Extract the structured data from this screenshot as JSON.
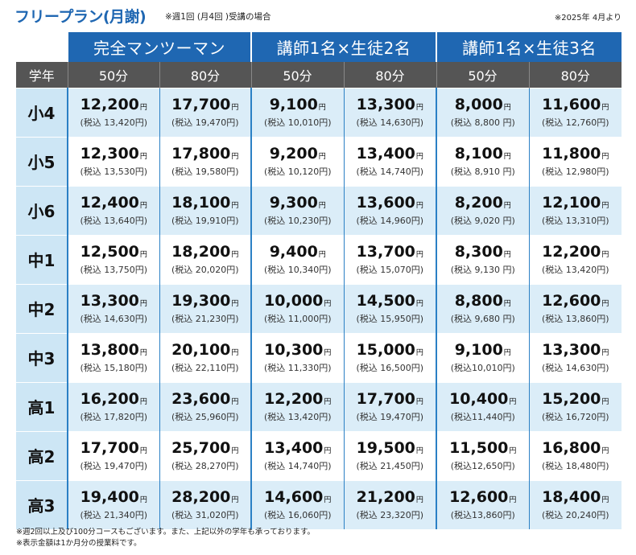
{
  "header": {
    "title": "フリープラン(月謝)",
    "note": "※週1回 (月4回 )受講の場合",
    "as_of": "※2025年 4月より"
  },
  "table": {
    "plans": [
      "完全マンツーマン",
      "講師1名×生徒2名",
      "講師1名×生徒3名"
    ],
    "grade_header": "学年",
    "durations": [
      "50分",
      "80分",
      "50分",
      "80分",
      "50分",
      "80分"
    ],
    "yen": "円",
    "rows": [
      {
        "grade": "小4",
        "prices": [
          {
            "price": "12,200",
            "tax": "(税込 13,420円)"
          },
          {
            "price": "17,700",
            "tax": "(税込 19,470円)"
          },
          {
            "price": "9,100",
            "tax": "(税込 10,010円)"
          },
          {
            "price": "13,300",
            "tax": "(税込 14,630円)"
          },
          {
            "price": "8,000",
            "tax": "(税込 8,800 円)"
          },
          {
            "price": "11,600",
            "tax": "(税込 12,760円)"
          }
        ]
      },
      {
        "grade": "小5",
        "prices": [
          {
            "price": "12,300",
            "tax": "(税込 13,530円)"
          },
          {
            "price": "17,800",
            "tax": "(税込 19,580円)"
          },
          {
            "price": "9,200",
            "tax": "(税込 10,120円)"
          },
          {
            "price": "13,400",
            "tax": "(税込 14,740円)"
          },
          {
            "price": "8,100",
            "tax": "(税込 8,910 円)"
          },
          {
            "price": "11,800",
            "tax": "(税込 12,980円)"
          }
        ]
      },
      {
        "grade": "小6",
        "prices": [
          {
            "price": "12,400",
            "tax": "(税込 13,640円)"
          },
          {
            "price": "18,100",
            "tax": "(税込 19,910円)"
          },
          {
            "price": "9,300",
            "tax": "(税込 10,230円)"
          },
          {
            "price": "13,600",
            "tax": "(税込 14,960円)"
          },
          {
            "price": "8,200",
            "tax": "(税込 9,020 円)"
          },
          {
            "price": "12,100",
            "tax": "(税込 13,310円)"
          }
        ]
      },
      {
        "grade": "中1",
        "prices": [
          {
            "price": "12,500",
            "tax": "(税込 13,750円)"
          },
          {
            "price": "18,200",
            "tax": "(税込 20,020円)"
          },
          {
            "price": "9,400",
            "tax": "(税込 10,340円)"
          },
          {
            "price": "13,700",
            "tax": "(税込 15,070円)"
          },
          {
            "price": "8,300",
            "tax": "(税込 9,130 円)"
          },
          {
            "price": "12,200",
            "tax": "(税込 13,420円)"
          }
        ]
      },
      {
        "grade": "中2",
        "prices": [
          {
            "price": "13,300",
            "tax": "(税込 14,630円)"
          },
          {
            "price": "19,300",
            "tax": "(税込 21,230円)"
          },
          {
            "price": "10,000",
            "tax": "(税込 11,000円)"
          },
          {
            "price": "14,500",
            "tax": "(税込 15,950円)"
          },
          {
            "price": "8,800",
            "tax": "(税込 9,680 円)"
          },
          {
            "price": "12,600",
            "tax": "(税込 13,860円)"
          }
        ]
      },
      {
        "grade": "中3",
        "prices": [
          {
            "price": "13,800",
            "tax": "(税込 15,180円)"
          },
          {
            "price": "20,100",
            "tax": "(税込 22,110円)"
          },
          {
            "price": "10,300",
            "tax": "(税込 11,330円)"
          },
          {
            "price": "15,000",
            "tax": "(税込 16,500円)"
          },
          {
            "price": "9,100",
            "tax": "(税込10,010円)"
          },
          {
            "price": "13,300",
            "tax": "(税込 14,630円)"
          }
        ]
      },
      {
        "grade": "高1",
        "prices": [
          {
            "price": "16,200",
            "tax": "(税込 17,820円)"
          },
          {
            "price": "23,600",
            "tax": "(税込 25,960円)"
          },
          {
            "price": "12,200",
            "tax": "(税込 13,420円)"
          },
          {
            "price": "17,700",
            "tax": "(税込 19,470円)"
          },
          {
            "price": "10,400",
            "tax": "(税込11,440円)"
          },
          {
            "price": "15,200",
            "tax": "(税込 16,720円)"
          }
        ]
      },
      {
        "grade": "高2",
        "prices": [
          {
            "price": "17,700",
            "tax": "(税込 19,470円)"
          },
          {
            "price": "25,700",
            "tax": "(税込 28,270円)"
          },
          {
            "price": "13,400",
            "tax": "(税込 14,740円)"
          },
          {
            "price": "19,500",
            "tax": "(税込 21,450円)"
          },
          {
            "price": "11,500",
            "tax": "(税込12,650円)"
          },
          {
            "price": "16,800",
            "tax": "(税込 18,480円)"
          }
        ]
      },
      {
        "grade": "高3",
        "prices": [
          {
            "price": "19,400",
            "tax": "(税込 21,340円)"
          },
          {
            "price": "28,200",
            "tax": "(税込 31,020円)"
          },
          {
            "price": "14,600",
            "tax": "(税込 16,060円)"
          },
          {
            "price": "21,200",
            "tax": "(税込 23,320円)"
          },
          {
            "price": "12,600",
            "tax": "(税込13,860円)"
          },
          {
            "price": "18,400",
            "tax": "(税込 20,240円)"
          }
        ]
      }
    ]
  },
  "footer": {
    "line1": "※週2回以上及び100分コースもございます。また、上記以外の学年も承っております。",
    "line2": "※表示金額は1か月分の授業料です。"
  },
  "colors": {
    "header_blue": "#1f67b2",
    "duration_gray": "#555555",
    "row_shade": "#dbedf8",
    "grade_cell": "#cde6f5"
  }
}
